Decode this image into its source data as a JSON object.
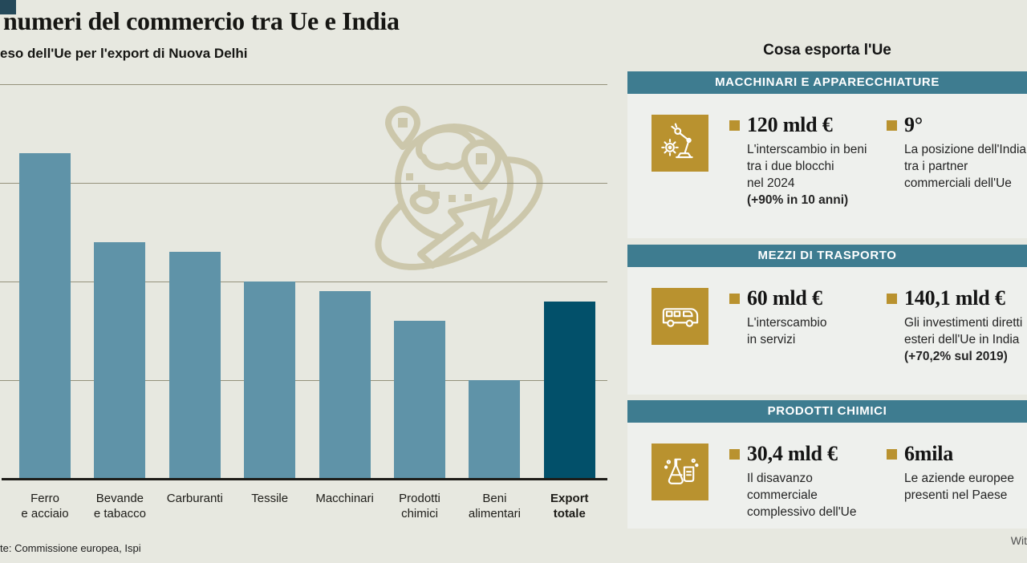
{
  "page": {
    "title": "numeri del commercio tra Ue e India",
    "subtitle": "eso dell'Ue per l'export di Nuova Delhi",
    "source": "te: Commissione europea, Ispi",
    "credit": "Wit"
  },
  "chart_data": {
    "type": "bar",
    "title": "numeri del commercio tra Ue e India",
    "subtitle": "eso dell'Ue per l'export di Nuova Delhi",
    "categories": [
      "Ferro e acciaio",
      "Bevande e tabacco",
      "Carburanti",
      "Tessile",
      "Macchinari",
      "Prodotti chimici",
      "Beni alimentari",
      "Export totale"
    ],
    "label_lines": [
      [
        "Ferro",
        "e acciaio"
      ],
      [
        "Bevande",
        "e tabacco"
      ],
      [
        "Carburanti"
      ],
      [
        "Tessile"
      ],
      [
        "Macchinari"
      ],
      [
        "Prodotti",
        "chimici"
      ],
      [
        "Beni",
        "alimentari"
      ],
      [
        "Export",
        "totale"
      ]
    ],
    "values": [
      16.5,
      12,
      11.5,
      10,
      9.5,
      8,
      5,
      9
    ],
    "values_note": "estimated from unlabeled gridlines (axis tick labels cropped out of frame)",
    "ylim": [
      0,
      20
    ],
    "gridline_values": [
      5,
      10,
      15,
      20
    ],
    "grid": true,
    "legend": "none",
    "highlight_index": 7,
    "bar_color": "#5f93a8",
    "highlight_color": "#02506a",
    "gridline_color": "#94917b",
    "axis_color": "#1d1c18"
  },
  "panel": {
    "title": "Cosa esporta l'Ue",
    "header_color": "#3e7c90",
    "body_color": "#eef0ed",
    "accent_color": "#b9922f",
    "sections": [
      {
        "header": "MACCHINARI E APPARECCHIATURE",
        "icon": "robot-arm-icon",
        "stats": [
          {
            "value": "120 mld €",
            "lines": [
              "L'interscambio in beni",
              "tra i due blocchi",
              "nel 2024"
            ],
            "bold_line": "(+90% in 10 anni)"
          },
          {
            "value": "9°",
            "lines": [
              "La posizione dell'India",
              "tra i partner",
              "commerciali dell'Ue"
            ]
          }
        ]
      },
      {
        "header": "MEZZI DI TRASPORTO",
        "icon": "bus-icon",
        "stats": [
          {
            "value": "60 mld €",
            "lines": [
              "L'interscambio",
              "in servizi"
            ]
          },
          {
            "value": "140,1 mld €",
            "lines": [
              "Gli investimenti diretti",
              "esteri dell'Ue in India"
            ],
            "bold_line": "(+70,2% sul 2019)"
          }
        ]
      },
      {
        "header": "PRODOTTI CHIMICI",
        "icon": "chemical-flasks-icon",
        "stats": [
          {
            "value": "30,4 mld €",
            "lines": [
              "Il disavanzo",
              "commerciale",
              "complessivo dell'Ue"
            ]
          },
          {
            "value": "6mila",
            "lines": [
              "Le aziende europee",
              "presenti nel Paese"
            ]
          }
        ]
      }
    ]
  }
}
